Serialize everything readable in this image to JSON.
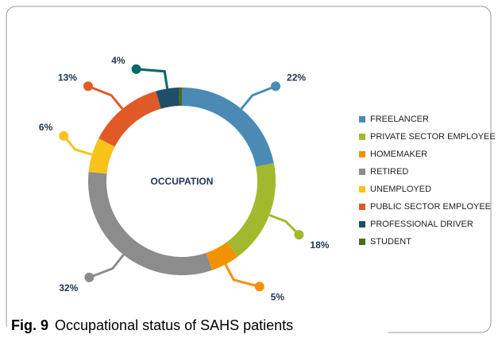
{
  "chart_data": {
    "type": "donut",
    "center_label": "OCCUPATION",
    "categories": [
      "FREELANCER",
      "PRIVATE SECTOR EMPLOYEE",
      "HOMEMAKER",
      "RETIRED",
      "UNEMPLOYED",
      "PUBLIC SECTOR EMPLOYEE",
      "PROFESSIONAL DRIVER",
      "STUDENT"
    ],
    "values": [
      22,
      18,
      5,
      32,
      6,
      13,
      4,
      0.5
    ],
    "value_labels": [
      "22%",
      "18%",
      "5%",
      "32%",
      "6%",
      "13%",
      "4%",
      null
    ],
    "colors": [
      "#4a8ab5",
      "#a2b92e",
      "#f39200",
      "#8c8c8c",
      "#f7c31b",
      "#e05a27",
      "#1f4e67",
      "#4b6b1e"
    ],
    "legend": "right",
    "caption_label": "Fig. 9",
    "caption_text": "Occupational status of SAHS patients"
  }
}
